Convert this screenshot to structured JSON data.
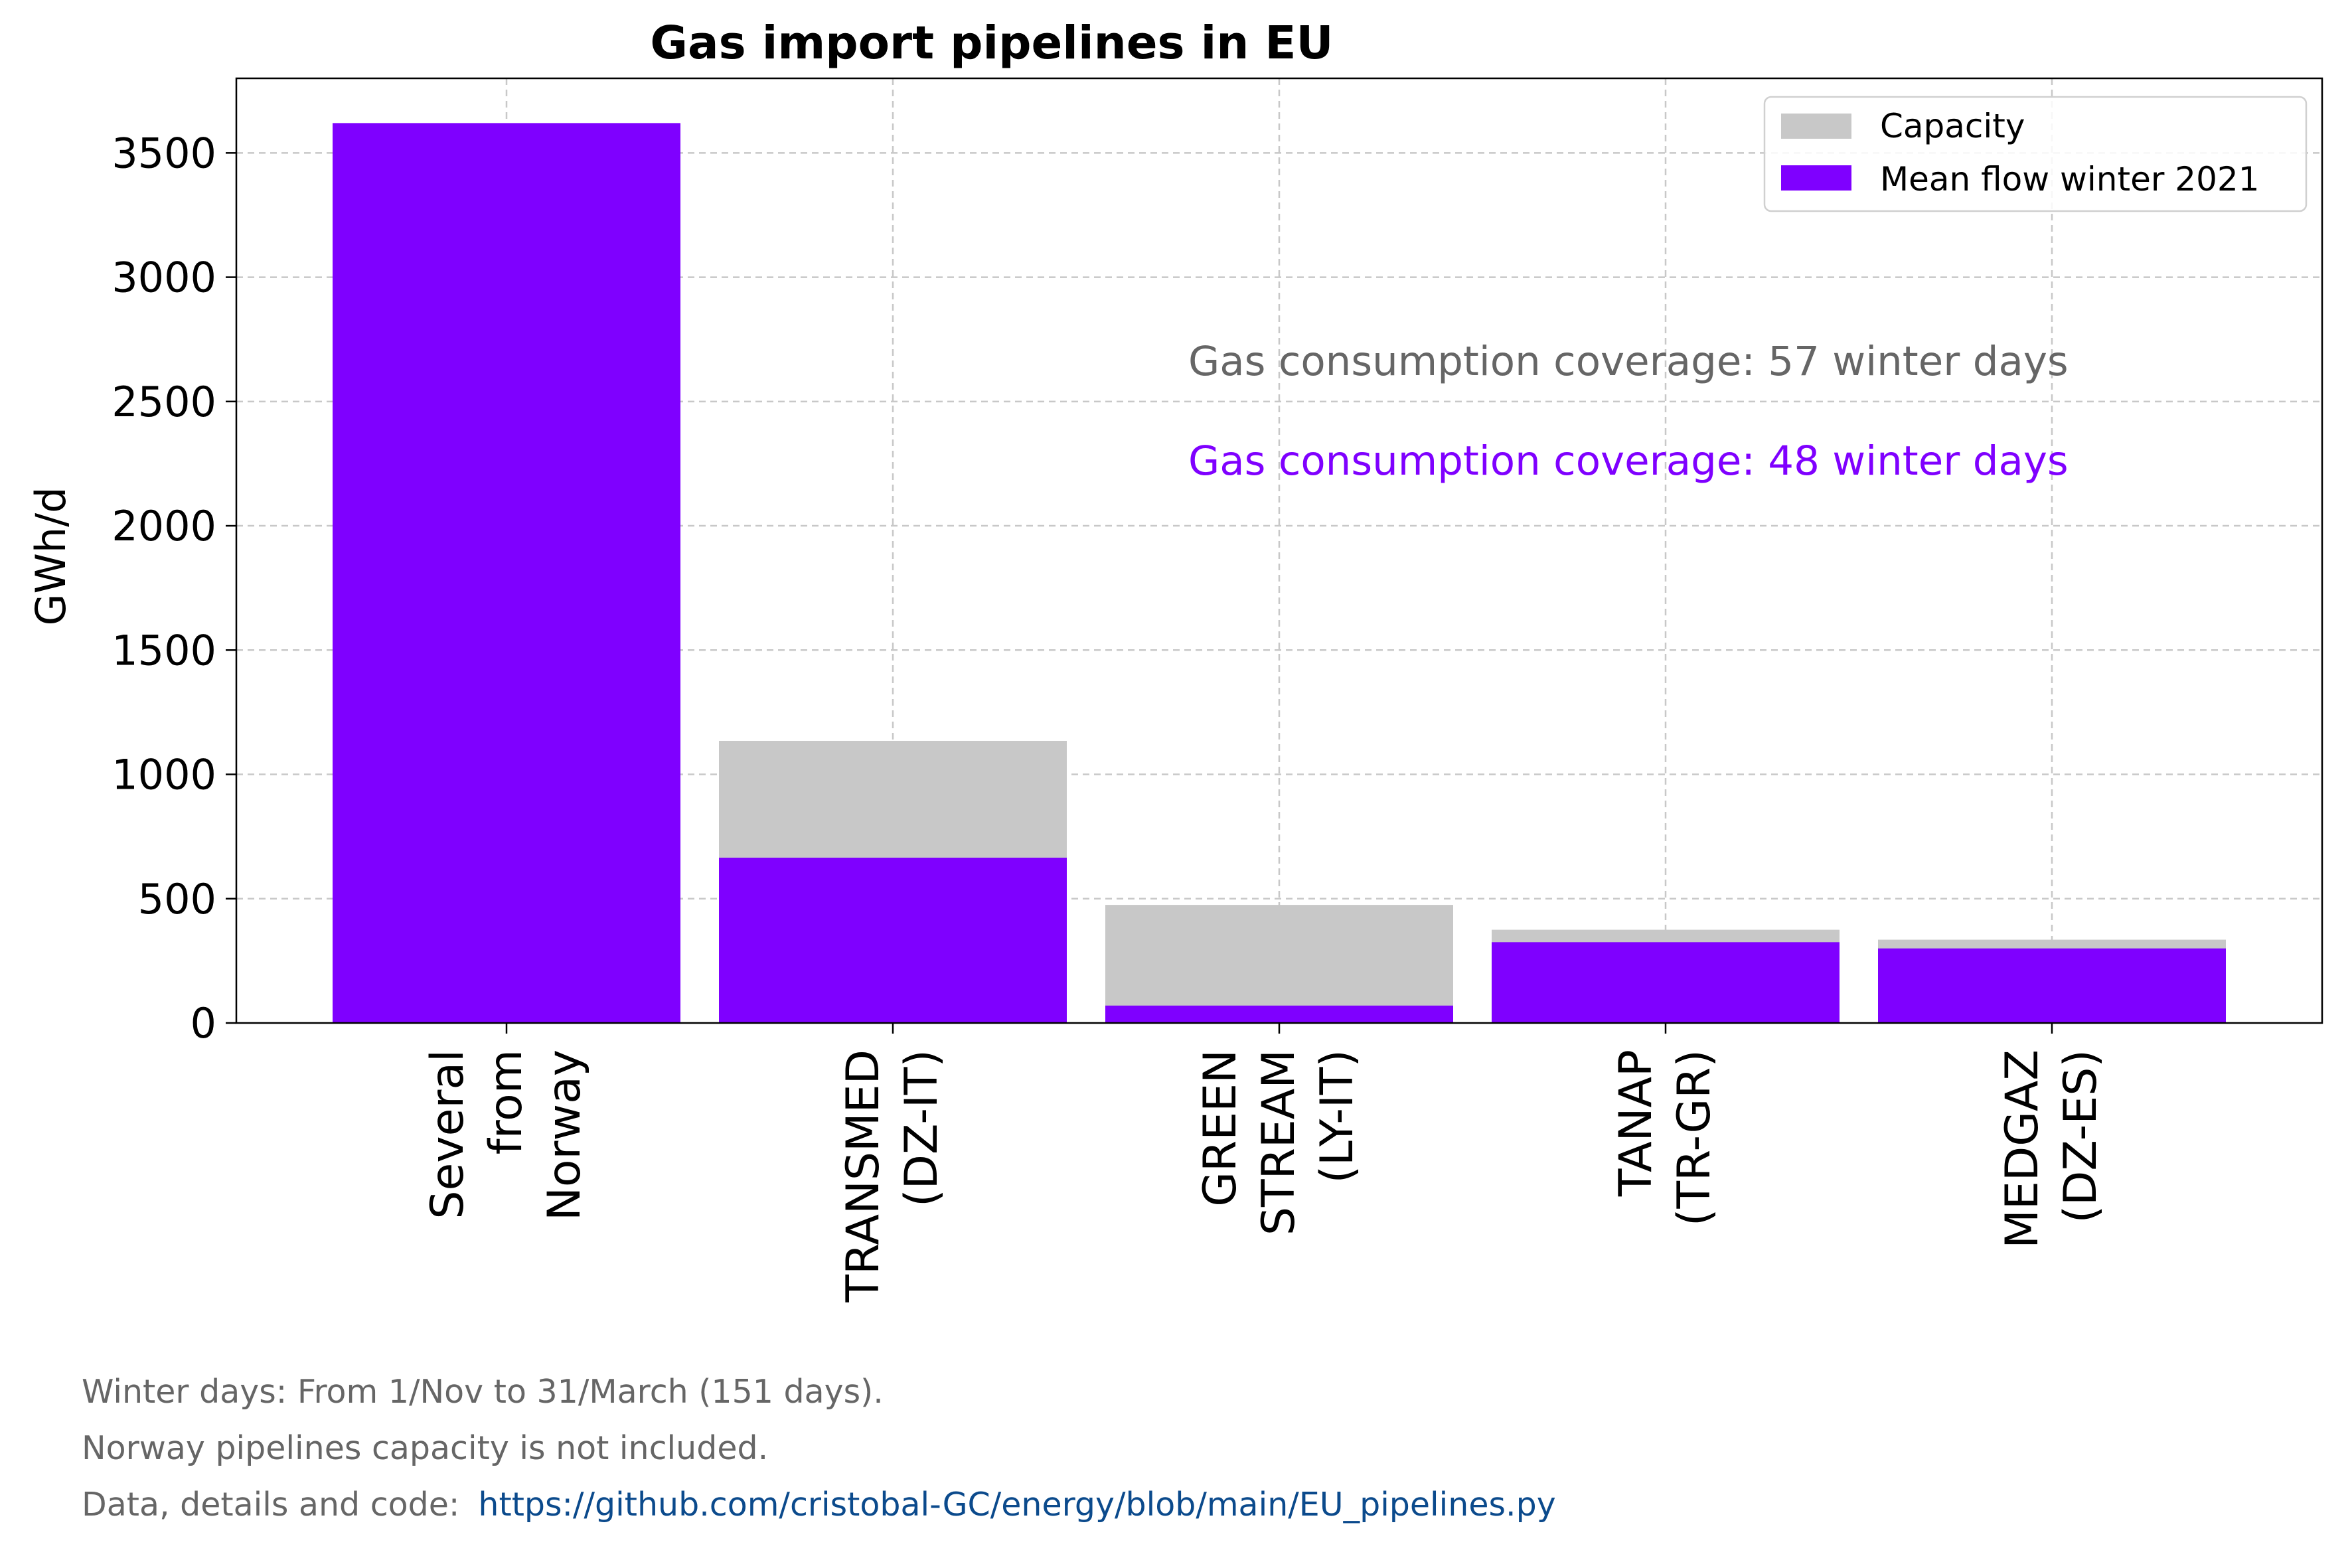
{
  "chart_data": {
    "type": "bar",
    "title": "Gas import pipelines in EU",
    "xlabel": "",
    "ylabel": "GWh/d",
    "ylim": [
      0,
      3800
    ],
    "yticks": [
      0,
      500,
      1000,
      1500,
      2000,
      2500,
      3000,
      3500
    ],
    "grid": true,
    "legend_position": "top-right",
    "stacking": "overlay",
    "categories": [
      [
        "Several",
        "from",
        "Norway"
      ],
      [
        "TRANSMED",
        "(DZ-IT)"
      ],
      [
        "GREEN",
        "STREAM",
        "(LY-IT)"
      ],
      [
        "TANAP",
        "(TR-GR)"
      ],
      [
        "MEDGAZ",
        "(DZ-ES)"
      ]
    ],
    "series": [
      {
        "name": "Capacity",
        "color": "#c8c8c8",
        "values": [
          null,
          1135,
          475,
          375,
          335
        ]
      },
      {
        "name": "Mean flow winter 2021",
        "color": "#7f00ff",
        "values": [
          3620,
          665,
          70,
          325,
          300
        ]
      }
    ],
    "annotations": [
      {
        "text": "Gas consumption coverage: 57 winter days",
        "color": "#666666"
      },
      {
        "text": "Gas consumption coverage: 48 winter days",
        "color": "#7f00ff"
      }
    ]
  },
  "footer": {
    "line1": "Winter days: From 1/Nov to 31/March (151 days).",
    "line2": "Norway pipelines capacity is not included.",
    "line3_label": "Data, details and code:",
    "line3_link": "https://github.com/cristobal-GC/energy/blob/main/EU_pipelines.py"
  }
}
